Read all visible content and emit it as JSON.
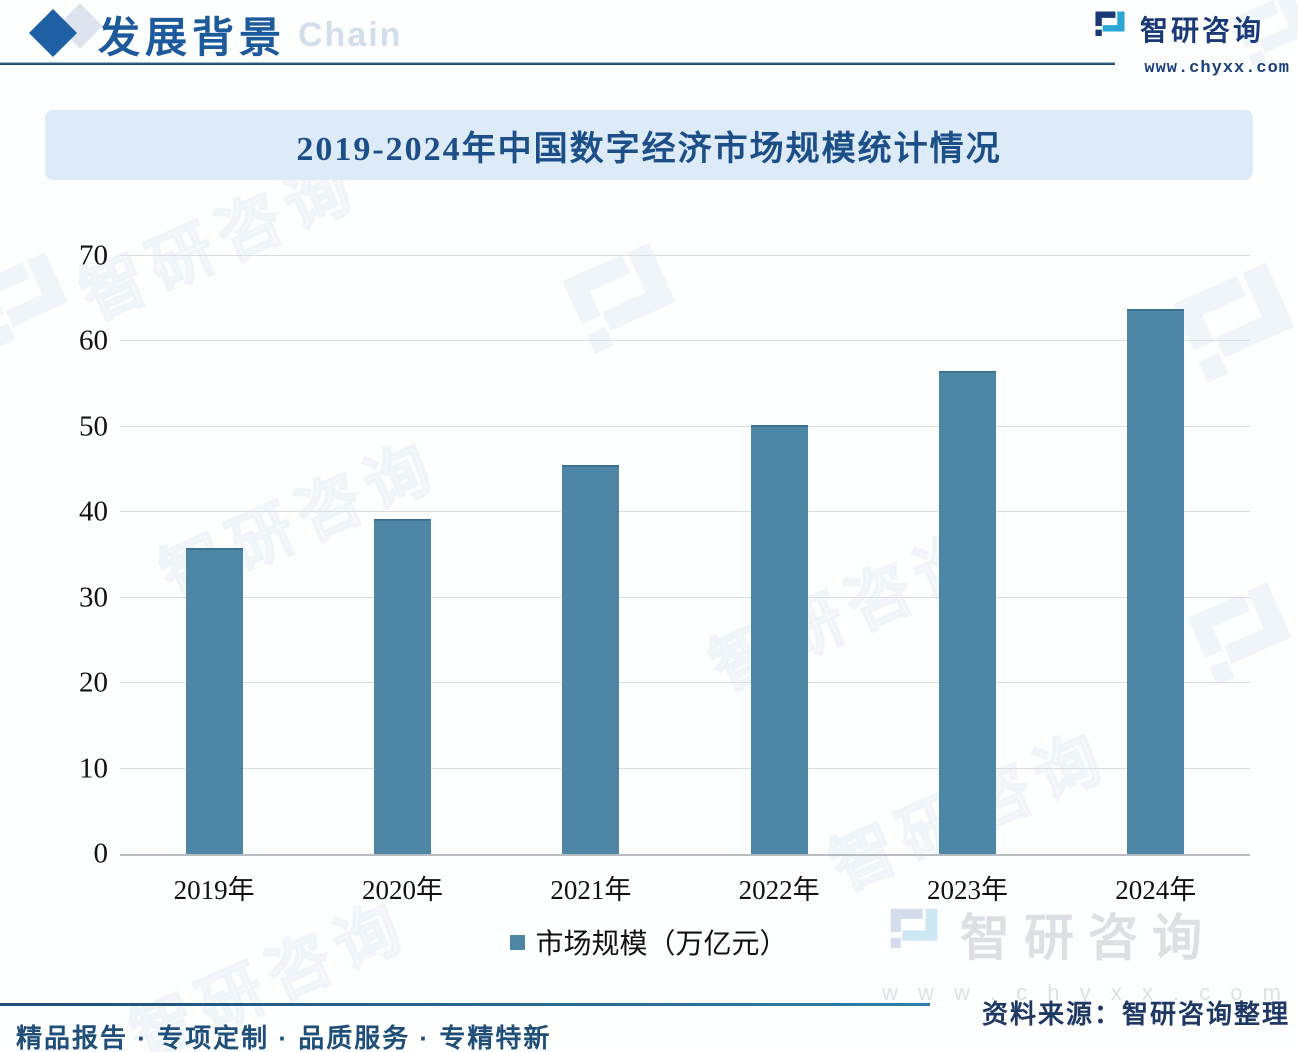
{
  "header": {
    "section_title": "发展背景",
    "watermark_text": "Chain",
    "brand": {
      "name": "智研咨询",
      "url": "www.chyxx.com"
    }
  },
  "banner": {
    "title": "2019-2024年中国数字经济市场规模统计情况"
  },
  "chart_data": {
    "type": "bar",
    "title": "2019-2024年中国数字经济市场规模统计情况",
    "categories": [
      "2019年",
      "2020年",
      "2021年",
      "2022年",
      "2023年",
      "2024年"
    ],
    "values": [
      35.8,
      39.2,
      45.5,
      50.2,
      56.5,
      63.8
    ],
    "series_name": "市场规模（万亿元）",
    "xlabel": "",
    "ylabel": "",
    "ylim": [
      0,
      70
    ],
    "yticks": [
      0,
      10,
      20,
      30,
      40,
      50,
      60,
      70
    ],
    "grid": true,
    "legend_position": "bottom",
    "bar_color": "#4e86a6"
  },
  "legend": {
    "label": "市场规模（万亿元）"
  },
  "source": {
    "text": "资料来源：智研咨询整理"
  },
  "footer": {
    "tagline": "精品报告 · 专项定制 · 品质服务 · 专精特新"
  },
  "bottom_watermark": {
    "url": "w w w . c h y x x . c o m"
  },
  "colors": {
    "bar": "#4e86a6",
    "banner_bg": "#ddeaf7",
    "title_blue": "#1c4e87",
    "brand_navy": "#1b3a75",
    "brand_cyan": "#2aa7d6",
    "footer_blue": "#1f4e79"
  }
}
